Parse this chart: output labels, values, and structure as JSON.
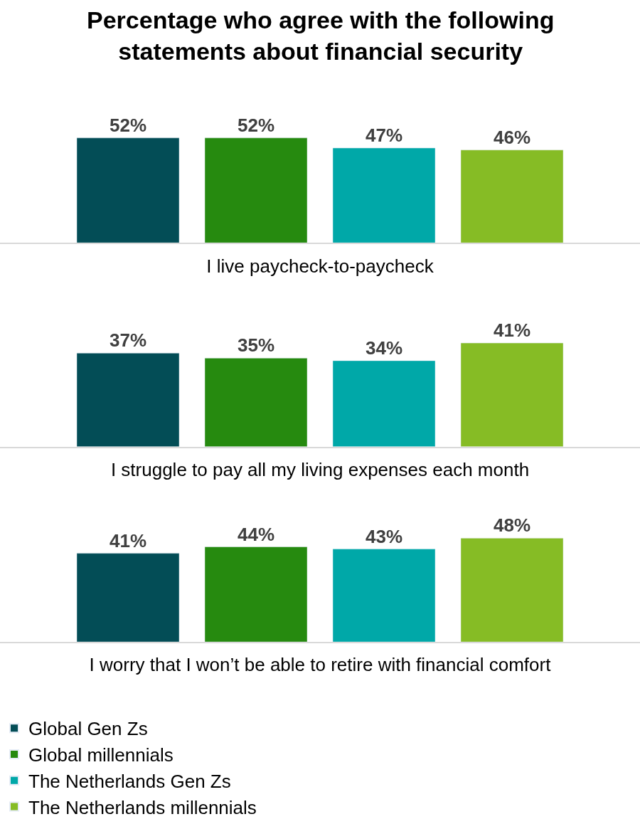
{
  "chart_data": [
    {
      "type": "bar",
      "title": "Percentage who agree with the following statements about financial security",
      "xlabel": "I live paycheck-to-paycheck",
      "categories": [
        null
      ],
      "tick_labels": false,
      "legend": "bottom",
      "series": [
        {
          "name": "Global Gen Zs",
          "color": "#034d56",
          "values": [
            52
          ],
          "value_labels": [
            "52%"
          ]
        },
        {
          "name": "Global millennials",
          "color": "#268a0f",
          "values": [
            52
          ],
          "value_labels": [
            "52%"
          ]
        },
        {
          "name": "The Netherlands Gen Zs",
          "color": "#00a8a8",
          "values": [
            47
          ],
          "value_labels": [
            "47%"
          ]
        },
        {
          "name": "The Netherlands millennials",
          "color": "#86bc25",
          "values": [
            46
          ],
          "value_labels": [
            "46%"
          ]
        }
      ]
    },
    {
      "type": "bar",
      "xlabel": "I struggle to pay all my living expenses each month",
      "categories": [
        null
      ],
      "tick_labels": false,
      "series": [
        {
          "color": "#034d56",
          "values": [
            37
          ],
          "value_labels": [
            "37%"
          ]
        },
        {
          "color": "#268a0f",
          "values": [
            35
          ],
          "value_labels": [
            "35%"
          ]
        },
        {
          "color": "#00a8a8",
          "values": [
            34
          ],
          "value_labels": [
            "34%"
          ]
        },
        {
          "color": "#86bc25",
          "values": [
            41
          ],
          "value_labels": [
            "41%"
          ]
        }
      ]
    },
    {
      "type": "bar",
      "xlabel": "I worry that I won’t be able to retire with financial comfort",
      "categories": [
        null
      ],
      "tick_labels": false,
      "series": [
        {
          "color": "#034d56",
          "values": [
            41
          ],
          "value_labels": [
            "41%"
          ]
        },
        {
          "color": "#268a0f",
          "values": [
            44
          ],
          "value_labels": [
            "44%"
          ]
        },
        {
          "color": "#00a8a8",
          "values": [
            43
          ],
          "value_labels": [
            "43%"
          ]
        },
        {
          "color": "#86bc25",
          "values": [
            48
          ],
          "value_labels": [
            "48%"
          ]
        }
      ]
    }
  ]
}
